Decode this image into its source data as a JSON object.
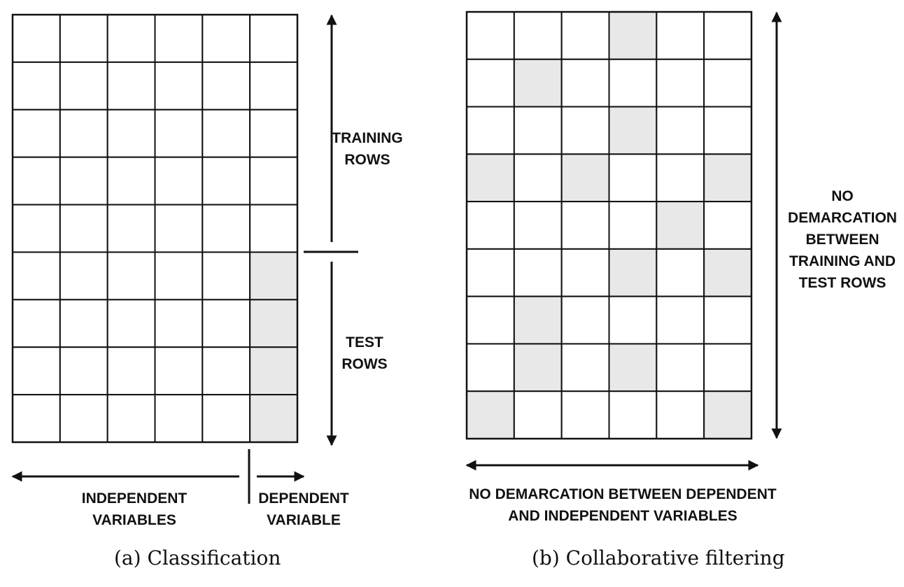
{
  "panel_a": {
    "grid": {
      "rows": 9,
      "cols": 6,
      "shaded_cells": [
        [
          5,
          5
        ],
        [
          6,
          5
        ],
        [
          7,
          5
        ],
        [
          8,
          5
        ]
      ]
    },
    "split_arrow": {
      "top_label": [
        "TRAINING",
        "ROWS"
      ],
      "bottom_label": [
        "TEST",
        "ROWS"
      ]
    },
    "bottom_arrow": {
      "left_label": [
        "INDEPENDENT",
        "VARIABLES"
      ],
      "right_label": [
        "DEPENDENT",
        "VARIABLE"
      ]
    },
    "caption": "(a) Classification"
  },
  "panel_b": {
    "grid": {
      "rows": 9,
      "cols": 6,
      "shaded_cells": [
        [
          0,
          3
        ],
        [
          1,
          1
        ],
        [
          2,
          3
        ],
        [
          3,
          0
        ],
        [
          3,
          2
        ],
        [
          3,
          5
        ],
        [
          4,
          4
        ],
        [
          5,
          3
        ],
        [
          5,
          5
        ],
        [
          6,
          1
        ],
        [
          7,
          1
        ],
        [
          7,
          3
        ],
        [
          8,
          0
        ],
        [
          8,
          5
        ]
      ]
    },
    "right_label": [
      "NO",
      "DEMARCATION",
      "BETWEEN",
      "TRAINING AND",
      "TEST ROWS"
    ],
    "bottom_label": [
      "NO DEMARCATION BETWEEN DEPENDENT",
      "AND INDEPENDENT VARIABLES"
    ],
    "caption": "(b) Collaborative filtering"
  },
  "colors": {
    "shade": "#e8e8e8",
    "line": "#111111"
  }
}
